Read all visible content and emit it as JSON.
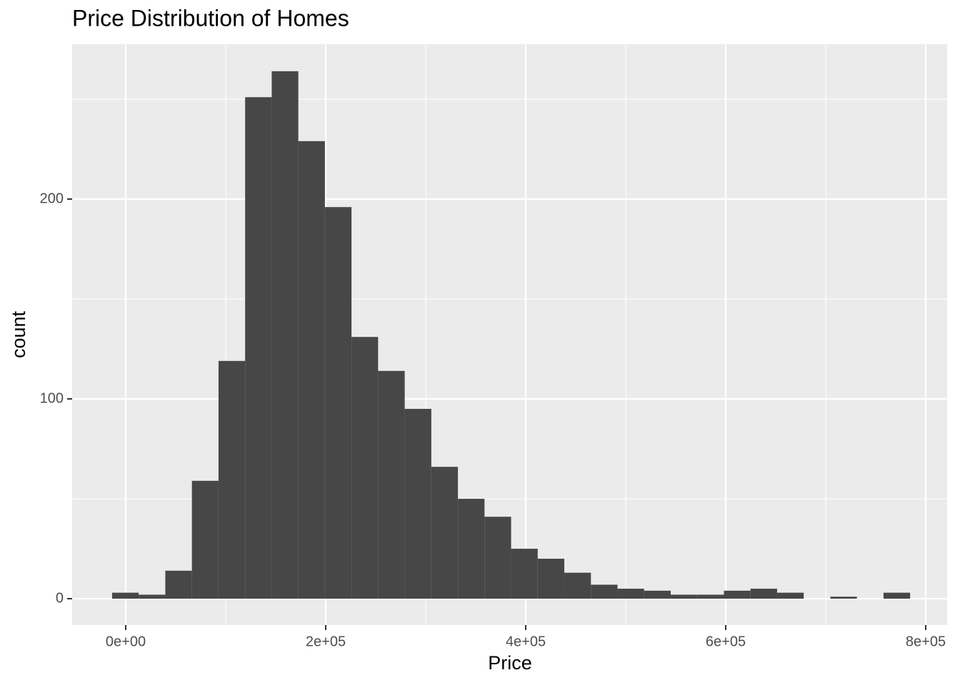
{
  "chart_data": {
    "type": "histogram",
    "title": "Price Distribution of Homes",
    "x_label": "Price",
    "y_label": "count",
    "bins": [
      -13600,
      13000,
      39600,
      66200,
      92800,
      119400,
      146000,
      172600,
      199200,
      225800,
      252400,
      279000,
      305600,
      332200,
      358800,
      385400,
      412000,
      438600,
      465200,
      491800,
      518400,
      545000,
      571600,
      598200,
      624800,
      651400,
      678000,
      704600,
      731200,
      757800,
      784400
    ],
    "values": [
      3,
      2,
      14,
      59,
      119,
      251,
      264,
      229,
      196,
      131,
      114,
      95,
      66,
      50,
      41,
      25,
      20,
      13,
      7,
      5,
      4,
      2,
      2,
      4,
      5,
      3,
      0,
      1,
      0,
      3
    ],
    "color": "#474747",
    "xlim": [
      -53571,
      821429
    ],
    "xticks": [
      {
        "value": 0,
        "label": "0e+00"
      },
      {
        "value": 200000,
        "label": "2e+05"
      },
      {
        "value": 400000,
        "label": "4e+05"
      },
      {
        "value": 600000,
        "label": "6e+05"
      },
      {
        "value": 800000,
        "label": "8e+05"
      }
    ],
    "xticks_minor": [
      100000,
      300000,
      500000,
      700000
    ],
    "ylim": [
      -13.2,
      277.5
    ],
    "yticks": [
      0,
      100,
      200
    ],
    "yticks_minor": [
      50,
      150,
      250
    ],
    "grid": true
  }
}
